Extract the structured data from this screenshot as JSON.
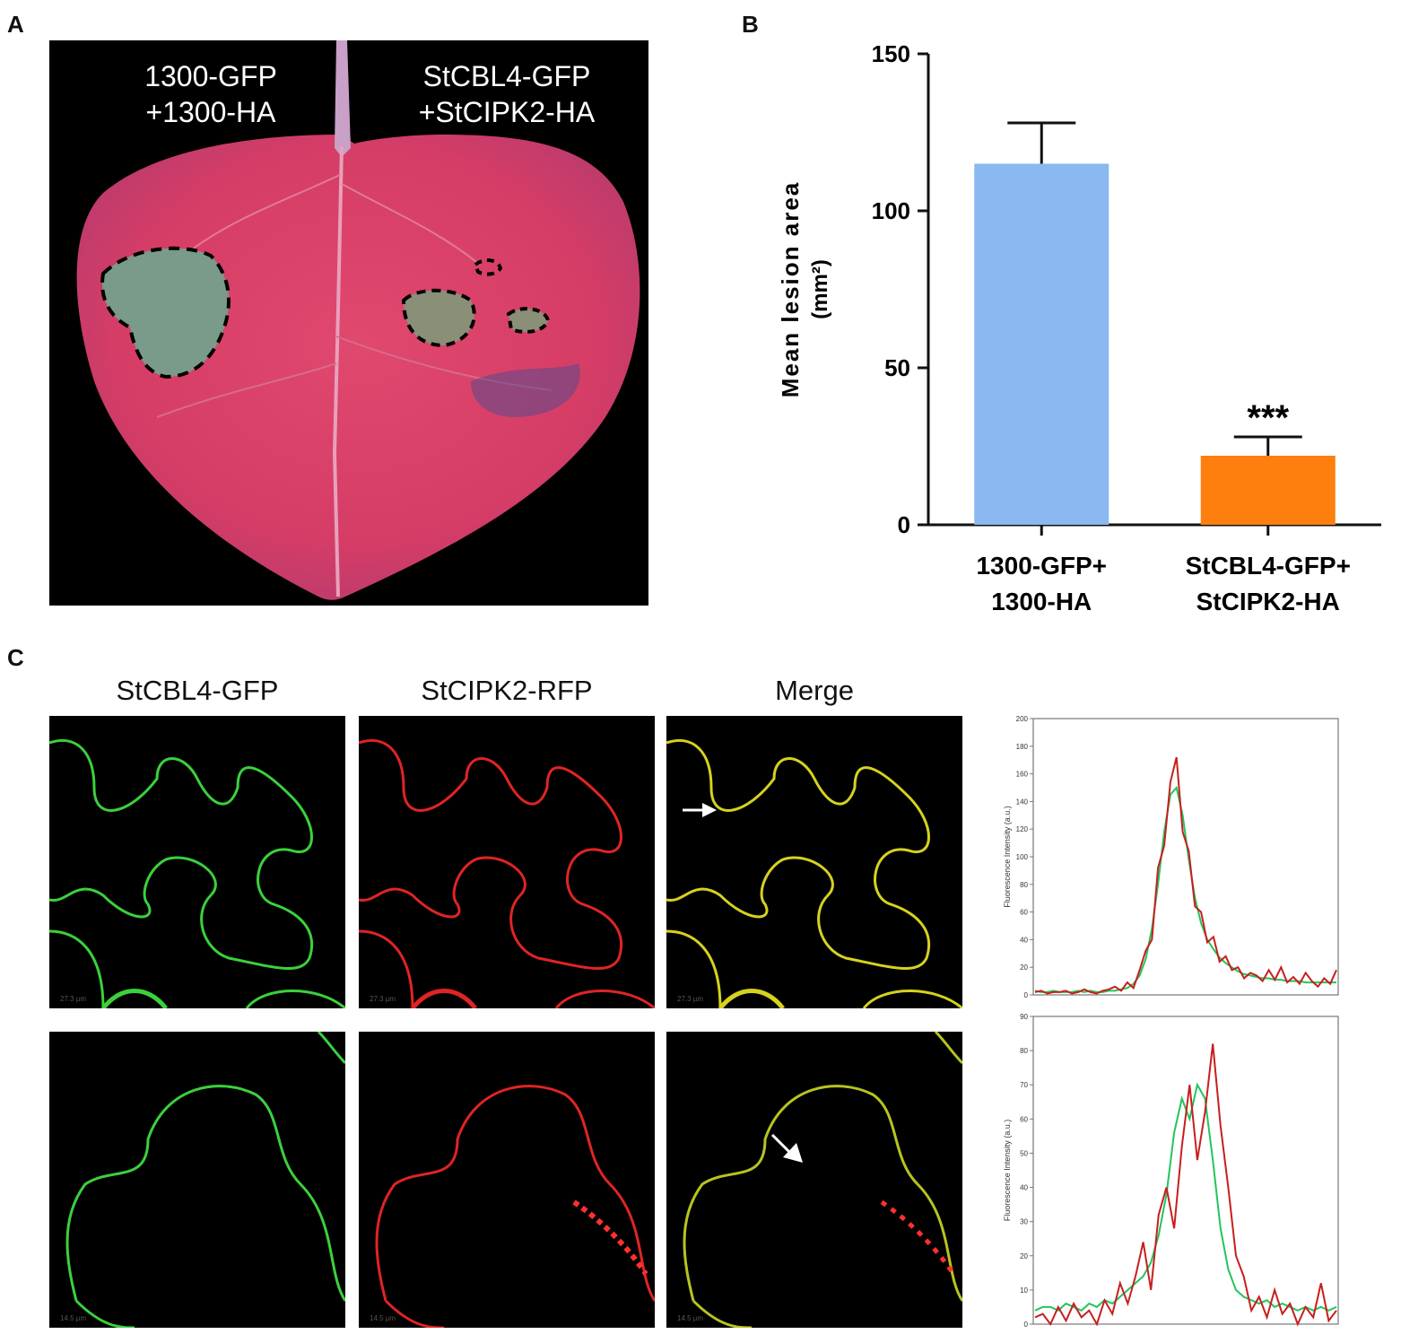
{
  "panels": {
    "a": "A",
    "b": "B",
    "c": "C"
  },
  "leaf": {
    "label_left": [
      "1300-GFP",
      "+1300-HA"
    ],
    "label_right": [
      "StCBL4-GFP",
      "+StCIPK2-HA"
    ]
  },
  "chart_data": [
    {
      "type": "bar",
      "categories": [
        "1300-GFP+\n1300-HA",
        "StCBL4-GFP+\nStCIPK2-HA"
      ],
      "category_lines": [
        [
          "1300-GFP+",
          "1300-HA"
        ],
        [
          "StCBL4-GFP+",
          "StCIPK2-HA"
        ]
      ],
      "values": [
        115,
        22
      ],
      "errors": [
        13,
        6
      ],
      "colors": [
        "#8ab8f0",
        "#ff7f0e"
      ],
      "annotations": [
        "",
        "***"
      ],
      "ylabel": "Mean lesion area",
      "ylabel_unit": "(mm²)",
      "ylim": [
        0,
        150
      ],
      "yticks": [
        0,
        50,
        100,
        150
      ],
      "grid": false
    },
    {
      "type": "line",
      "ylabel": "Fluorescence Intensity (a.u.)",
      "ylim": [
        0,
        200
      ],
      "yticks": [
        0,
        20,
        40,
        60,
        80,
        100,
        120,
        140,
        160,
        180,
        200
      ],
      "series": [
        {
          "color": "#22c55e",
          "values": [
            3,
            2,
            2,
            3,
            2,
            2,
            2,
            3,
            2,
            3,
            2,
            2,
            3,
            3,
            4,
            5,
            8,
            14,
            26,
            48,
            80,
            118,
            145,
            150,
            130,
            98,
            70,
            52,
            40,
            33,
            27,
            23,
            20,
            17,
            15,
            14,
            13,
            12,
            12,
            11,
            11,
            10,
            10,
            10,
            9,
            9,
            9,
            9,
            9,
            9
          ]
        },
        {
          "color": "#c81e1e",
          "values": [
            2,
            3,
            1,
            2,
            2,
            3,
            1,
            2,
            4,
            2,
            1,
            3,
            4,
            6,
            3,
            9,
            5,
            18,
            32,
            40,
            92,
            108,
            154,
            172,
            118,
            104,
            64,
            60,
            38,
            42,
            24,
            28,
            18,
            20,
            12,
            16,
            14,
            10,
            18,
            11,
            20,
            9,
            13,
            8,
            16,
            10,
            6,
            12,
            8,
            18
          ]
        }
      ]
    },
    {
      "type": "line",
      "ylabel": "Fluorescence Intensity (a.u.)",
      "ylim": [
        0,
        90
      ],
      "yticks": [
        0,
        10,
        20,
        30,
        40,
        50,
        60,
        70,
        80,
        90
      ],
      "series": [
        {
          "color": "#22c55e",
          "values": [
            4,
            5,
            5,
            4,
            6,
            5,
            4,
            6,
            5,
            7,
            6,
            8,
            10,
            12,
            14,
            18,
            26,
            38,
            56,
            66,
            60,
            70,
            66,
            48,
            28,
            16,
            10,
            8,
            7,
            6,
            7,
            5,
            6,
            5,
            4,
            5,
            4,
            5,
            4,
            5
          ]
        },
        {
          "color": "#c81e1e",
          "values": [
            2,
            3,
            0,
            5,
            1,
            6,
            2,
            4,
            0,
            7,
            3,
            12,
            6,
            14,
            24,
            10,
            32,
            40,
            28,
            52,
            70,
            48,
            62,
            82,
            58,
            40,
            20,
            14,
            4,
            8,
            2,
            10,
            3,
            6,
            0,
            5,
            2,
            12,
            1,
            4
          ]
        }
      ]
    }
  ],
  "micro": {
    "col_titles": [
      "StCBL4-GFP",
      "StCIPK2-RFP",
      "Merge"
    ],
    "scale_top": "27.3 µm",
    "scale_bottom": "14.5 µm"
  }
}
